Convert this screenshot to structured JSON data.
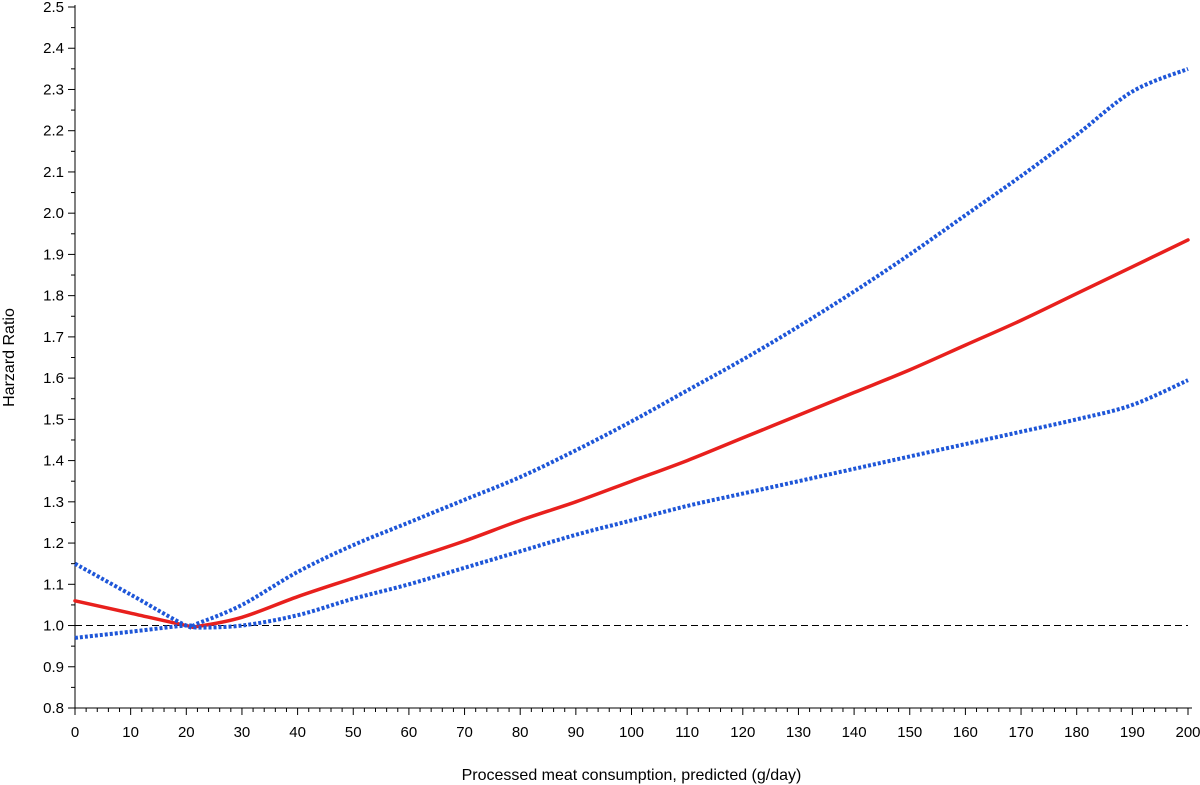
{
  "chart_data": {
    "type": "line",
    "title": "",
    "xlabel": "Processed meat consumption, predicted (g/day)",
    "ylabel": "Harzard Ratio",
    "xlim": [
      0,
      200
    ],
    "ylim": [
      0.8,
      2.5
    ],
    "x_ticks": [
      "0",
      "10",
      "20",
      "30",
      "40",
      "50",
      "60",
      "70",
      "80",
      "90",
      "100",
      "110",
      "120",
      "130",
      "140",
      "150",
      "160",
      "170",
      "180",
      "190",
      "200"
    ],
    "y_ticks": [
      "0.8",
      "0.9",
      "1.0",
      "1.1",
      "1.2",
      "1.3",
      "1.4",
      "1.5",
      "1.6",
      "1.7",
      "1.8",
      "1.9",
      "2.0",
      "2.1",
      "2.2",
      "2.3",
      "2.4",
      "2.5"
    ],
    "reference_line": {
      "y": 1.0,
      "style": "dashed",
      "color": "#000000"
    },
    "grid": false,
    "legend": "none",
    "x": [
      0,
      10,
      20,
      22,
      30,
      40,
      50,
      60,
      70,
      80,
      90,
      100,
      110,
      120,
      130,
      140,
      150,
      160,
      170,
      180,
      190,
      200
    ],
    "series": [
      {
        "role": "estimate",
        "color": "#e8201d",
        "style": "solid",
        "values": [
          1.06,
          1.03,
          1.0,
          0.998,
          1.02,
          1.07,
          1.115,
          1.16,
          1.205,
          1.255,
          1.3,
          1.35,
          1.4,
          1.455,
          1.51,
          1.565,
          1.62,
          1.68,
          1.74,
          1.805,
          1.87,
          1.935
        ]
      },
      {
        "role": "upper-ci",
        "color": "#1e56d8",
        "style": "dotted",
        "values": [
          1.15,
          1.075,
          1.0,
          1.005,
          1.05,
          1.13,
          1.195,
          1.25,
          1.305,
          1.36,
          1.425,
          1.495,
          1.57,
          1.645,
          1.725,
          1.81,
          1.9,
          1.995,
          2.09,
          2.19,
          2.295,
          2.35
        ]
      },
      {
        "role": "lower-ci",
        "color": "#1e56d8",
        "style": "dotted",
        "values": [
          0.97,
          0.985,
          1.0,
          0.995,
          1.0,
          1.025,
          1.065,
          1.1,
          1.14,
          1.18,
          1.22,
          1.255,
          1.29,
          1.32,
          1.35,
          1.38,
          1.41,
          1.44,
          1.47,
          1.5,
          1.535,
          1.595
        ]
      }
    ]
  }
}
